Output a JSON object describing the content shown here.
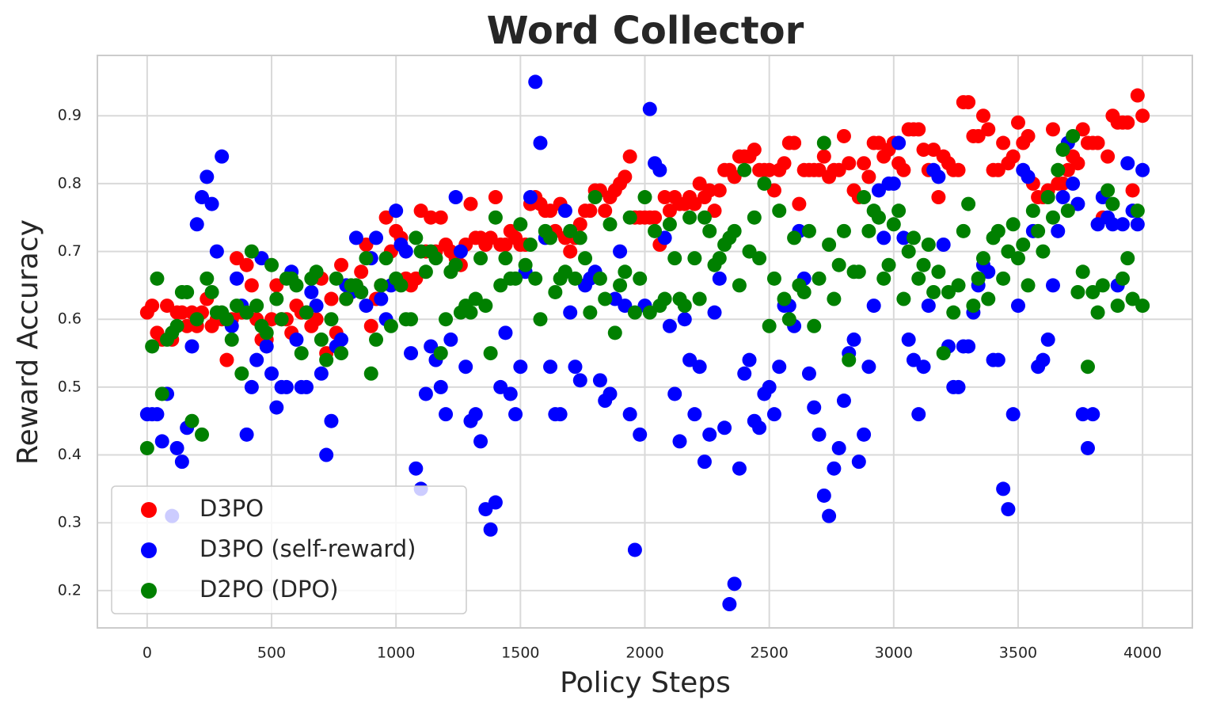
{
  "chart_data": {
    "type": "scatter",
    "title": "Word Collector",
    "x_label": "Policy Steps",
    "y_label": "Reward Accuracy",
    "xlim": [
      -200,
      4200
    ],
    "ylim": [
      0.145,
      0.989
    ],
    "xticks": [
      0,
      500,
      1000,
      1500,
      2000,
      2500,
      3000,
      3500,
      4000
    ],
    "yticks": [
      0.2,
      0.3,
      0.4,
      0.5,
      0.6,
      0.7,
      0.8,
      0.9
    ],
    "grid": true,
    "legend": "lower left",
    "x": [
      0,
      20,
      40,
      60,
      80,
      100,
      120,
      140,
      160,
      180,
      200,
      220,
      240,
      260,
      280,
      300,
      320,
      340,
      360,
      380,
      400,
      420,
      440,
      460,
      480,
      500,
      520,
      540,
      560,
      580,
      600,
      620,
      640,
      660,
      680,
      700,
      720,
      740,
      760,
      780,
      800,
      820,
      840,
      860,
      880,
      900,
      920,
      940,
      960,
      980,
      1000,
      1020,
      1040,
      1060,
      1080,
      1100,
      1120,
      1140,
      1160,
      1180,
      1200,
      1220,
      1240,
      1260,
      1280,
      1300,
      1320,
      1340,
      1360,
      1380,
      1400,
      1420,
      1440,
      1460,
      1480,
      1500,
      1520,
      1540,
      1560,
      1580,
      1600,
      1620,
      1640,
      1660,
      1680,
      1700,
      1720,
      1740,
      1760,
      1780,
      1800,
      1820,
      1840,
      1860,
      1880,
      1900,
      1920,
      1940,
      1960,
      1980,
      2000,
      2020,
      2040,
      2060,
      2080,
      2100,
      2120,
      2140,
      2160,
      2180,
      2200,
      2220,
      2240,
      2260,
      2280,
      2300,
      2320,
      2340,
      2360,
      2380,
      2400,
      2420,
      2440,
      2460,
      2480,
      2500,
      2520,
      2540,
      2560,
      2580,
      2600,
      2620,
      2640,
      2660,
      2680,
      2700,
      2720,
      2740,
      2760,
      2780,
      2800,
      2820,
      2840,
      2860,
      2880,
      2900,
      2920,
      2940,
      2960,
      2980,
      3000,
      3020,
      3040,
      3060,
      3080,
      3100,
      3120,
      3140,
      3160,
      3180,
      3200,
      3220,
      3240,
      3260,
      3280,
      3300,
      3320,
      3340,
      3360,
      3380,
      3400,
      3420,
      3440,
      3460,
      3480,
      3500,
      3520,
      3540,
      3560,
      3580,
      3600,
      3620,
      3640,
      3660,
      3680,
      3700,
      3720,
      3740,
      3760,
      3780,
      3800,
      3820,
      3840,
      3860,
      3880,
      3900,
      3920,
      3940,
      3960,
      3980,
      4000
    ],
    "series": [
      {
        "name": "D3PO",
        "color": "#ff0000",
        "values": [
          0.61,
          0.62,
          0.58,
          0.57,
          0.62,
          0.57,
          0.61,
          0.61,
          0.59,
          0.61,
          0.59,
          0.61,
          0.63,
          0.59,
          0.6,
          0.6,
          0.54,
          0.6,
          0.69,
          0.61,
          0.68,
          0.65,
          0.6,
          0.57,
          0.57,
          0.6,
          0.65,
          0.6,
          0.6,
          0.58,
          0.62,
          0.61,
          0.61,
          0.59,
          0.6,
          0.66,
          0.55,
          0.63,
          0.58,
          0.68,
          0.63,
          0.64,
          0.65,
          0.67,
          0.71,
          0.59,
          0.63,
          0.65,
          0.75,
          0.7,
          0.73,
          0.72,
          0.66,
          0.65,
          0.66,
          0.76,
          0.7,
          0.75,
          0.7,
          0.75,
          0.71,
          0.7,
          0.69,
          0.68,
          0.71,
          0.77,
          0.72,
          0.72,
          0.71,
          0.72,
          0.78,
          0.71,
          0.71,
          0.73,
          0.72,
          0.71,
          0.71,
          0.77,
          0.78,
          0.77,
          0.76,
          0.76,
          0.73,
          0.77,
          0.72,
          0.7,
          0.72,
          0.74,
          0.76,
          0.76,
          0.79,
          0.79,
          0.76,
          0.78,
          0.79,
          0.8,
          0.81,
          0.84,
          0.75,
          0.75,
          0.75,
          0.75,
          0.75,
          0.71,
          0.78,
          0.76,
          0.78,
          0.77,
          0.77,
          0.78,
          0.77,
          0.8,
          0.78,
          0.79,
          0.76,
          0.79,
          0.82,
          0.82,
          0.81,
          0.84,
          0.84,
          0.84,
          0.85,
          0.82,
          0.82,
          0.82,
          0.79,
          0.82,
          0.83,
          0.86,
          0.86,
          0.77,
          0.82,
          0.82,
          0.82,
          0.82,
          0.84,
          0.81,
          0.82,
          0.82,
          0.87,
          0.83,
          0.79,
          0.78,
          0.83,
          0.81,
          0.86,
          0.86,
          0.84,
          0.85,
          0.86,
          0.83,
          0.82,
          0.88,
          0.88,
          0.88,
          0.85,
          0.82,
          0.85,
          0.78,
          0.84,
          0.83,
          0.82,
          0.82,
          0.92,
          0.92,
          0.87,
          0.87,
          0.9,
          0.88,
          0.82,
          0.82,
          0.86,
          0.83,
          0.84,
          0.89,
          0.86,
          0.87,
          0.8,
          0.78,
          0.78,
          0.79,
          0.88,
          0.8,
          0.8,
          0.82,
          0.84,
          0.83,
          0.88,
          0.86,
          0.86,
          0.86,
          0.75,
          0.84,
          0.9,
          0.89,
          0.89,
          0.89,
          0.79,
          0.93,
          0.9
        ]
      },
      {
        "name": "D3PO (self-reward)",
        "color": "#0000ff",
        "values": [
          0.46,
          0.46,
          0.46,
          0.42,
          0.49,
          0.31,
          0.41,
          0.39,
          0.44,
          0.56,
          0.74,
          0.78,
          0.81,
          0.77,
          0.7,
          0.84,
          0.6,
          0.59,
          0.66,
          0.62,
          0.43,
          0.5,
          0.54,
          0.69,
          0.56,
          0.52,
          0.47,
          0.5,
          0.5,
          0.67,
          0.57,
          0.5,
          0.5,
          0.64,
          0.62,
          0.52,
          0.4,
          0.45,
          0.56,
          0.57,
          0.65,
          0.64,
          0.72,
          0.64,
          0.62,
          0.69,
          0.72,
          0.63,
          0.6,
          0.65,
          0.76,
          0.71,
          0.7,
          0.55,
          0.38,
          0.35,
          0.49,
          0.56,
          0.54,
          0.5,
          0.46,
          0.57,
          0.78,
          0.7,
          0.53,
          0.45,
          0.46,
          0.42,
          0.32,
          0.29,
          0.33,
          0.5,
          0.58,
          0.49,
          0.46,
          0.53,
          0.67,
          0.78,
          0.95,
          0.86,
          0.72,
          0.53,
          0.46,
          0.46,
          0.76,
          0.61,
          0.53,
          0.51,
          0.65,
          0.66,
          0.67,
          0.51,
          0.48,
          0.49,
          0.63,
          0.7,
          0.62,
          0.46,
          0.26,
          0.43,
          0.62,
          0.91,
          0.83,
          0.82,
          0.72,
          0.59,
          0.49,
          0.42,
          0.6,
          0.54,
          0.46,
          0.53,
          0.39,
          0.43,
          0.61,
          0.66,
          0.44,
          0.18,
          0.21,
          0.38,
          0.52,
          0.54,
          0.45,
          0.44,
          0.49,
          0.5,
          0.46,
          0.53,
          0.62,
          0.62,
          0.59,
          0.73,
          0.66,
          0.52,
          0.47,
          0.43,
          0.34,
          0.31,
          0.38,
          0.41,
          0.48,
          0.55,
          0.57,
          0.39,
          0.43,
          0.53,
          0.62,
          0.79,
          0.72,
          0.8,
          0.8,
          0.86,
          0.72,
          0.57,
          0.54,
          0.46,
          0.53,
          0.62,
          0.82,
          0.81,
          0.71,
          0.56,
          0.5,
          0.5,
          0.56,
          0.56,
          0.61,
          0.65,
          0.68,
          0.67,
          0.54,
          0.54,
          0.35,
          0.32,
          0.46,
          0.62,
          0.82,
          0.81,
          0.73,
          0.53,
          0.54,
          0.57,
          0.65,
          0.73,
          0.78,
          0.86,
          0.8,
          0.77,
          0.46,
          0.41,
          0.46,
          0.74,
          0.78,
          0.75,
          0.74,
          0.65,
          0.74,
          0.83,
          0.76,
          0.74,
          0.82
        ]
      },
      {
        "name": "D2PO (DPO)",
        "color": "#008000",
        "values": [
          0.41,
          0.56,
          0.66,
          0.49,
          0.57,
          0.58,
          0.59,
          0.64,
          0.64,
          0.45,
          0.6,
          0.43,
          0.66,
          0.64,
          0.61,
          0.61,
          0.6,
          0.57,
          0.62,
          0.52,
          0.61,
          0.7,
          0.62,
          0.59,
          0.58,
          0.68,
          0.63,
          0.6,
          0.66,
          0.66,
          0.65,
          0.55,
          0.61,
          0.66,
          0.67,
          0.57,
          0.54,
          0.6,
          0.66,
          0.55,
          0.63,
          0.65,
          0.65,
          0.64,
          0.69,
          0.52,
          0.57,
          0.65,
          0.69,
          0.59,
          0.66,
          0.65,
          0.6,
          0.6,
          0.72,
          0.7,
          0.67,
          0.7,
          0.69,
          0.55,
          0.6,
          0.67,
          0.68,
          0.61,
          0.62,
          0.61,
          0.63,
          0.69,
          0.62,
          0.55,
          0.75,
          0.65,
          0.69,
          0.66,
          0.66,
          0.74,
          0.68,
          0.71,
          0.66,
          0.6,
          0.73,
          0.72,
          0.64,
          0.66,
          0.67,
          0.73,
          0.66,
          0.72,
          0.69,
          0.61,
          0.78,
          0.66,
          0.63,
          0.74,
          0.58,
          0.65,
          0.67,
          0.75,
          0.61,
          0.66,
          0.78,
          0.61,
          0.73,
          0.62,
          0.63,
          0.74,
          0.69,
          0.63,
          0.62,
          0.75,
          0.69,
          0.63,
          0.75,
          0.73,
          0.68,
          0.69,
          0.71,
          0.72,
          0.73,
          0.65,
          0.82,
          0.7,
          0.75,
          0.69,
          0.8,
          0.59,
          0.66,
          0.76,
          0.63,
          0.6,
          0.72,
          0.65,
          0.64,
          0.73,
          0.59,
          0.66,
          0.86,
          0.71,
          0.63,
          0.68,
          0.73,
          0.54,
          0.67,
          0.67,
          0.78,
          0.73,
          0.76,
          0.75,
          0.66,
          0.68,
          0.74,
          0.76,
          0.63,
          0.7,
          0.72,
          0.66,
          0.68,
          0.71,
          0.64,
          0.67,
          0.55,
          0.64,
          0.61,
          0.65,
          0.73,
          0.77,
          0.62,
          0.66,
          0.69,
          0.63,
          0.72,
          0.73,
          0.66,
          0.7,
          0.74,
          0.69,
          0.71,
          0.65,
          0.76,
          0.73,
          0.7,
          0.78,
          0.75,
          0.82,
          0.85,
          0.76,
          0.87,
          0.64,
          0.67,
          0.53,
          0.64,
          0.61,
          0.65,
          0.79,
          0.77,
          0.62,
          0.66,
          0.69,
          0.63,
          0.76,
          0.62
        ]
      }
    ]
  }
}
